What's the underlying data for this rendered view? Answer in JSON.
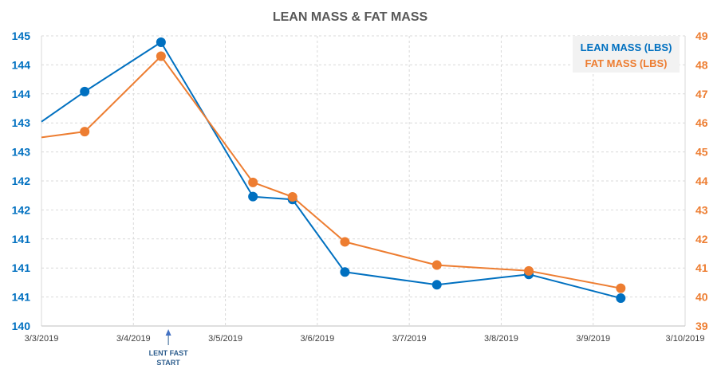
{
  "chart_data": {
    "type": "line",
    "title": "LEAN MASS & FAT MASS",
    "x_ticks": [
      "3/3/2019",
      "3/4/2019",
      "3/5/2019",
      "3/6/2019",
      "3/7/2019",
      "3/8/2019",
      "3/9/2019",
      "3/10/2019"
    ],
    "x_range_days": [
      0,
      7
    ],
    "y_left": {
      "range": [
        140,
        145
      ],
      "tick_values": [
        140,
        140.5,
        141,
        141.5,
        142,
        142.5,
        143,
        143.5,
        144,
        144.5,
        145
      ],
      "tick_labels": [
        "140",
        "141",
        "141",
        "141",
        "142",
        "142",
        "143",
        "143",
        "144",
        "144",
        "145"
      ]
    },
    "y_right": {
      "range": [
        39,
        49
      ],
      "tick_labels": [
        "39",
        "40",
        "41",
        "42",
        "43",
        "44",
        "45",
        "46",
        "47",
        "48",
        "49"
      ]
    },
    "series": [
      {
        "name": "LEAN MASS (LBS)",
        "axis": "left",
        "color": "#0070C0",
        "points": [
          {
            "day": 0.0,
            "value": 143.52,
            "marker": false
          },
          {
            "day": 0.47,
            "value": 144.04,
            "marker": true
          },
          {
            "day": 1.3,
            "value": 144.89,
            "marker": true
          },
          {
            "day": 2.3,
            "value": 142.23,
            "marker": true
          },
          {
            "day": 2.73,
            "value": 142.18,
            "marker": true
          },
          {
            "day": 3.3,
            "value": 140.93,
            "marker": true
          },
          {
            "day": 4.3,
            "value": 140.71,
            "marker": true
          },
          {
            "day": 5.3,
            "value": 140.89,
            "marker": true
          },
          {
            "day": 6.3,
            "value": 140.48,
            "marker": true
          }
        ]
      },
      {
        "name": "FAT MASS (LBS)",
        "axis": "right",
        "color": "#ED7D31",
        "points": [
          {
            "day": 0.0,
            "value": 45.5,
            "marker": false
          },
          {
            "day": 0.47,
            "value": 45.7,
            "marker": true
          },
          {
            "day": 1.3,
            "value": 48.3,
            "marker": true
          },
          {
            "day": 2.3,
            "value": 43.95,
            "marker": true
          },
          {
            "day": 2.73,
            "value": 43.45,
            "marker": true
          },
          {
            "day": 3.3,
            "value": 41.9,
            "marker": true
          },
          {
            "day": 4.3,
            "value": 41.1,
            "marker": true
          },
          {
            "day": 5.3,
            "value": 40.9,
            "marker": true
          },
          {
            "day": 6.3,
            "value": 40.3,
            "marker": true
          }
        ]
      }
    ],
    "annotation": {
      "lines": [
        "LENT FAST",
        "START"
      ],
      "day": 1.38
    },
    "legend": {
      "position": "top-right",
      "background": "#F2F2F2"
    },
    "grid": true
  }
}
